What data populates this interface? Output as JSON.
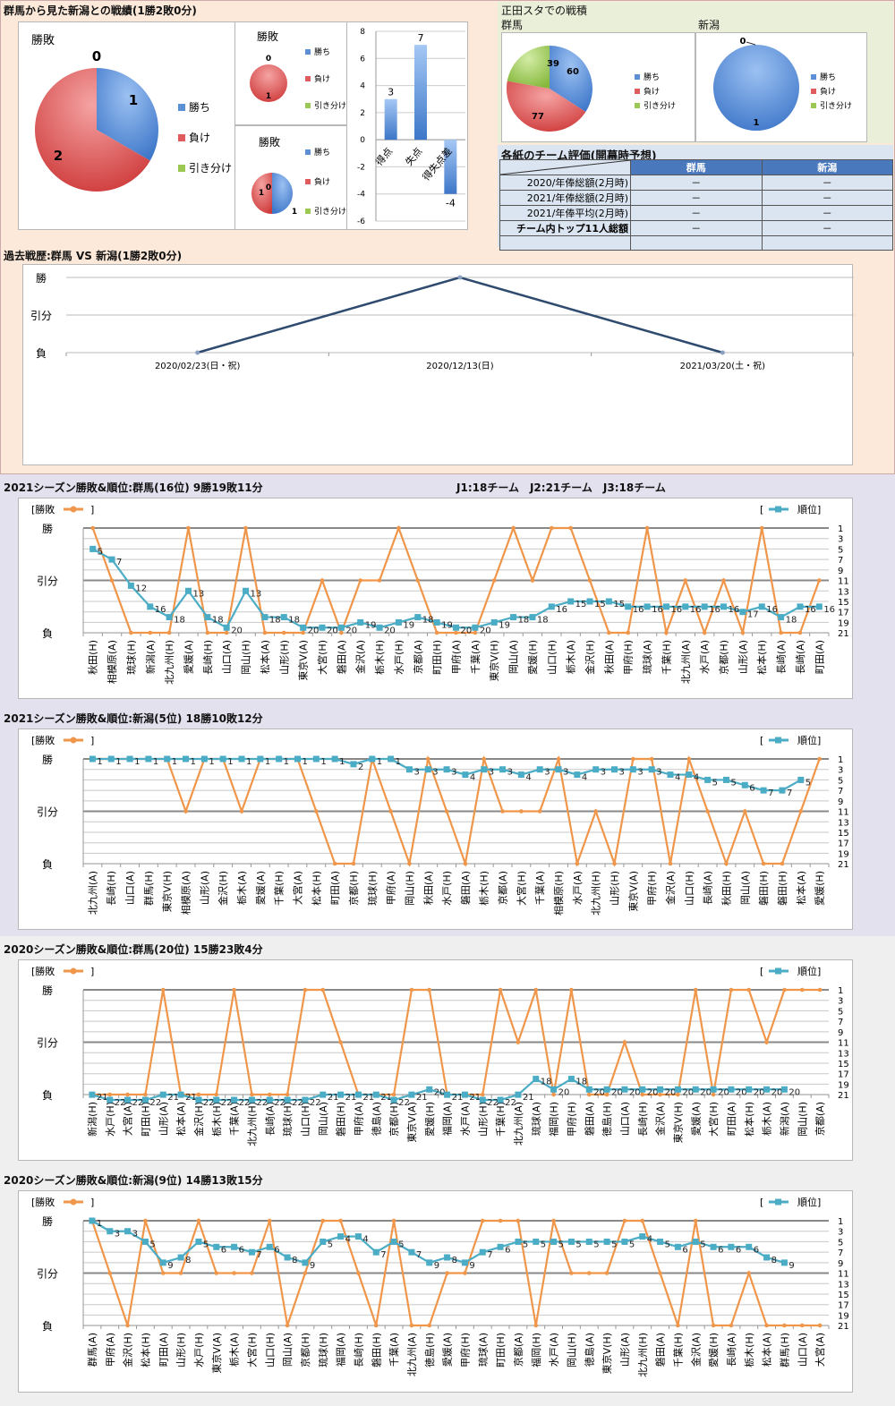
{
  "header": {
    "title": "群馬から見た新潟との戦績(1勝2敗0分)",
    "stadium_title": "正田スタでの戦積",
    "stadium_gunma_label": "群馬",
    "stadium_niigata_label": "新潟",
    "eval_title": "各紙のチーム評価(開幕時予想)",
    "history_title": "過去戦歴:群馬 VS 新潟(1勝2敗0分)"
  },
  "legend": {
    "win": "勝ち",
    "loss": "負け",
    "draw": "引き分け",
    "pie_title": "勝敗",
    "result_series": "[勝敗",
    "rank_series": "順位]",
    "bracket_open": "[",
    "bracket_close": "]"
  },
  "colors": {
    "win": "#5b8fd6",
    "loss": "#e05c5c",
    "draw": "#9bc853",
    "orange": "#f0964a",
    "teal": "#4bacc6",
    "navy": "#2e4a6e",
    "bar": "#4f86cf"
  },
  "eval_table": {
    "columns": [
      "群馬",
      "新潟"
    ],
    "rows": [
      {
        "label": "2020/年俸総額(2月時)",
        "values": [
          "－",
          "－"
        ]
      },
      {
        "label": "2021/年俸総額(2月時)",
        "values": [
          "－",
          "－"
        ]
      },
      {
        "label": "2021/年俸平均(2月時)",
        "values": [
          "－",
          "－"
        ]
      },
      {
        "label": "チーム内トップ11人総額",
        "values": [
          "－",
          "－"
        ]
      },
      {
        "label": "",
        "values": [
          "",
          ""
        ]
      }
    ]
  },
  "seasons": [
    {
      "title": "2021シーズン勝敗&順位:群馬(16位) 9勝19敗11分",
      "note": "J1:18チーム　J2:21チーム　J3:18チーム",
      "bg": "#e4e1ef"
    },
    {
      "title": "2021シーズン勝敗&順位:新潟(5位) 18勝10敗12分",
      "note": "",
      "bg": "#e4e1ef"
    },
    {
      "title": "2020シーズン勝敗&順位:群馬(20位) 15勝23敗4分",
      "note": "",
      "bg": "#efefef"
    },
    {
      "title": "2020シーズン勝敗&順位:新潟(9位) 14勝13敗15分",
      "note": "",
      "bg": "#efefef"
    }
  ],
  "chart_data": [
    {
      "id": "h2h_pie_total",
      "type": "pie",
      "title": "勝敗",
      "labels": [
        "勝ち",
        "負け",
        "引き分け"
      ],
      "values": [
        1,
        2,
        0
      ]
    },
    {
      "id": "h2h_pie_home",
      "type": "pie",
      "title": "勝敗",
      "labels": [
        "勝ち",
        "負け",
        "引き分け"
      ],
      "values": [
        0,
        1,
        0
      ]
    },
    {
      "id": "h2h_pie_away",
      "type": "pie",
      "title": "勝敗",
      "labels": [
        "勝ち",
        "負け",
        "引き分け"
      ],
      "values": [
        1,
        1,
        0
      ]
    },
    {
      "id": "h2h_goals",
      "type": "bar",
      "categories": [
        "得点",
        "失点",
        "得失点差"
      ],
      "values": [
        3,
        7,
        -4
      ],
      "ylim": [
        -6,
        8
      ],
      "yticks": [
        8,
        6,
        4,
        2,
        0,
        -2,
        -4,
        -6
      ]
    },
    {
      "id": "shoda_gunma",
      "type": "pie",
      "title": "群馬",
      "labels": [
        "勝ち",
        "負け",
        "引き分け"
      ],
      "values": [
        60,
        77,
        39
      ]
    },
    {
      "id": "shoda_niigata",
      "type": "pie",
      "title": "新潟",
      "labels": [
        "勝ち",
        "負け",
        "引き分け"
      ],
      "values": [
        1,
        0,
        0
      ]
    },
    {
      "id": "history",
      "type": "line",
      "x": [
        "2020/02/23(日・祝)",
        "2020/12/13(日)",
        "2021/03/20(土・祝)"
      ],
      "values": [
        "L",
        "W",
        "L"
      ],
      "yticks": [
        "勝",
        "引分",
        "負"
      ]
    },
    {
      "id": "gunma2021",
      "type": "line",
      "yticks": [
        "勝",
        "引分",
        "負"
      ],
      "rank_ticks": [
        1,
        3,
        5,
        7,
        9,
        11,
        13,
        15,
        17,
        19,
        21
      ],
      "rank_max": 22,
      "x": [
        "秋田(H)",
        "相模原(A)",
        "琉球(H)",
        "新潟(A)",
        "北九州(H)",
        "愛媛(A)",
        "長崎(H)",
        "山口(A)",
        "岡山(H)",
        "松本(A)",
        "山形(H)",
        "東京V(A)",
        "大宮(H)",
        "磐田(A)",
        "金沢(A)",
        "栃木(H)",
        "水戸(H)",
        "京都(A)",
        "町田(H)",
        "甲府(A)",
        "千葉(A)",
        "東京V(H)",
        "岡山(A)",
        "愛媛(H)",
        "山口(H)",
        "栃木(A)",
        "金沢(H)",
        "秋田(A)",
        "甲府(H)",
        "琉球(A)",
        "千葉(H)",
        "北九州(A)",
        "水戸(A)",
        "京都(H)",
        "山形(A)",
        "松本(H)",
        "長崎(A)",
        "長崎(A)",
        "町田(A)"
      ],
      "results": [
        "W",
        "D",
        "L",
        "L",
        "L",
        "W",
        "L",
        "L",
        "W",
        "L",
        "L",
        "L",
        "D",
        "L",
        "D",
        "D",
        "W",
        "D",
        "L",
        "L",
        "L",
        "D",
        "W",
        "D",
        "W",
        "W",
        "D",
        "L",
        "L",
        "W",
        "L",
        "D",
        "L",
        "D",
        "L",
        "W",
        "L",
        "L",
        "D"
      ],
      "ranks": [
        5,
        7,
        12,
        16,
        18,
        13,
        18,
        20,
        13,
        18,
        18,
        20,
        20,
        20,
        19,
        20,
        19,
        18,
        19,
        20,
        20,
        19,
        18,
        18,
        16,
        15,
        15,
        15,
        16,
        16,
        16,
        16,
        16,
        16,
        17,
        16,
        18,
        16,
        16
      ]
    },
    {
      "id": "niigata2021",
      "type": "line",
      "yticks": [
        "勝",
        "引分",
        "負"
      ],
      "rank_ticks": [
        1,
        3,
        5,
        7,
        9,
        11,
        13,
        15,
        17,
        19,
        21
      ],
      "rank_max": 22,
      "x": [
        "北九州(A)",
        "長崎(H)",
        "山口(A)",
        "群馬(H)",
        "東京V(H)",
        "相模原(A)",
        "山形(A)",
        "金沢(H)",
        "栃木(A)",
        "愛媛(A)",
        "千葉(H)",
        "大宮(A)",
        "松本(H)",
        "町田(A)",
        "京都(H)",
        "琉球(H)",
        "甲府(A)",
        "岡山(H)",
        "秋田(A)",
        "水戸(H)",
        "磐田(A)",
        "栃木(H)",
        "京都(A)",
        "大宮(H)",
        "千葉(A)",
        "相模原(H)",
        "水戸(A)",
        "北九州(H)",
        "山形(H)",
        "東京V(A)",
        "甲府(H)",
        "金沢(A)",
        "山口(H)",
        "長崎(A)",
        "秋田(H)",
        "岡山(A)",
        "磐田(H)",
        "磐田(H)",
        "松本(A)",
        "愛媛(H)"
      ],
      "results": [
        "W",
        "W",
        "W",
        "W",
        "W",
        "D",
        "W",
        "W",
        "D",
        "W",
        "W",
        "W",
        "D",
        "L",
        "L",
        "W",
        "D",
        "L",
        "W",
        "D",
        "L",
        "W",
        "D",
        "D",
        "D",
        "W",
        "L",
        "D",
        "L",
        "W",
        "W",
        "L",
        "W",
        "D",
        "L",
        "D",
        "L",
        "L",
        "D",
        "W"
      ],
      "ranks": [
        1,
        1,
        1,
        1,
        1,
        1,
        1,
        1,
        1,
        1,
        1,
        1,
        1,
        1,
        2,
        1,
        1,
        3,
        3,
        3,
        4,
        3,
        3,
        4,
        3,
        3,
        4,
        3,
        3,
        3,
        3,
        4,
        4,
        5,
        5,
        6,
        7,
        7,
        5,
        null
      ]
    },
    {
      "id": "gunma2020",
      "type": "line",
      "yticks": [
        "勝",
        "引分",
        "負"
      ],
      "rank_ticks": [
        1,
        3,
        5,
        7,
        9,
        11,
        13,
        15,
        17,
        19,
        21
      ],
      "rank_max": 22,
      "x": [
        "新潟(H)",
        "水戸(H)",
        "大宮(A)",
        "町田(H)",
        "山形(A)",
        "松本(A)",
        "金沢(H)",
        "栃木(H)",
        "千葉(A)",
        "北九州(H)",
        "長崎(A)",
        "琉球(H)",
        "山口(H)",
        "岡山(A)",
        "磐田(H)",
        "甲府(A)",
        "徳島(A)",
        "京都(H)",
        "東京V(A)",
        "愛媛(H)",
        "福岡(A)",
        "水戸(A)",
        "山形(H)",
        "千葉(H)",
        "北九州(A)",
        "琉球(A)",
        "福岡(H)",
        "甲府(H)",
        "磐田(A)",
        "徳島(H)",
        "山口(A)",
        "長崎(H)",
        "金沢(A)",
        "東京V(H)",
        "愛媛(A)",
        "大宮(H)",
        "町田(A)",
        "松本(H)",
        "栃木(A)",
        "新潟(A)",
        "岡山(H)",
        "京都(A)"
      ],
      "results": [
        "L",
        "L",
        "L",
        "L",
        "W",
        "L",
        "L",
        "L",
        "W",
        "L",
        "L",
        "L",
        "W",
        "W",
        "D",
        "L",
        "L",
        "L",
        "W",
        "W",
        "L",
        "L",
        "L",
        "W",
        "D",
        "W",
        "L",
        "W",
        "L",
        "L",
        "D",
        "L",
        "L",
        "L",
        "W",
        "L",
        "W",
        "W",
        "D",
        "W",
        "W",
        "W"
      ],
      "ranks": [
        21,
        22,
        22,
        22,
        21,
        21,
        22,
        22,
        22,
        22,
        22,
        22,
        22,
        21,
        21,
        21,
        21,
        22,
        21,
        20,
        21,
        21,
        22,
        22,
        21,
        18,
        20,
        18,
        20,
        20,
        20,
        20,
        20,
        20,
        20,
        20,
        20,
        20,
        20,
        20,
        null,
        null
      ]
    },
    {
      "id": "niigata2020",
      "type": "line",
      "yticks": [
        "勝",
        "引分",
        "負"
      ],
      "rank_ticks": [
        1,
        3,
        5,
        7,
        9,
        11,
        13,
        15,
        17,
        19,
        21
      ],
      "rank_max": 22,
      "x": [
        "群馬(A)",
        "甲府(A)",
        "金沢(H)",
        "松本(H)",
        "町田(A)",
        "山形(H)",
        "水戸(H)",
        "東京V(A)",
        "栃木(A)",
        "大宮(H)",
        "山口(H)",
        "岡山(A)",
        "京都(H)",
        "琉球(H)",
        "福岡(A)",
        "長崎(H)",
        "磐田(H)",
        "千葉(A)",
        "北九州(A)",
        "徳島(H)",
        "愛媛(A)",
        "甲府(H)",
        "琉球(A)",
        "町田(H)",
        "京都(A)",
        "福岡(H)",
        "水戸(A)",
        "岡山(H)",
        "徳島(A)",
        "東京V(H)",
        "山形(A)",
        "北九州(H)",
        "磐田(A)",
        "千葉(H)",
        "金沢(A)",
        "愛媛(H)",
        "長崎(A)",
        "栃木(H)",
        "松本(A)",
        "群馬(H)",
        "山口(A)",
        "大宮(A)"
      ],
      "results": [
        "W",
        "D",
        "L",
        "W",
        "D",
        "D",
        "W",
        "D",
        "D",
        "D",
        "W",
        "L",
        "D",
        "W",
        "W",
        "D",
        "L",
        "W",
        "L",
        "L",
        "D",
        "D",
        "W",
        "W",
        "W",
        "L",
        "W",
        "D",
        "D",
        "D",
        "W",
        "W",
        "D",
        "L",
        "W",
        "L",
        "L",
        "D",
        "L",
        "L",
        "L",
        "L"
      ],
      "ranks": [
        1,
        3,
        3,
        5,
        9,
        8,
        5,
        6,
        6,
        7,
        6,
        8,
        9,
        5,
        4,
        4,
        7,
        5,
        7,
        9,
        8,
        9,
        7,
        6,
        5,
        5,
        5,
        5,
        5,
        5,
        5,
        4,
        5,
        6,
        5,
        6,
        6,
        6,
        8,
        9,
        null,
        null
      ]
    }
  ]
}
